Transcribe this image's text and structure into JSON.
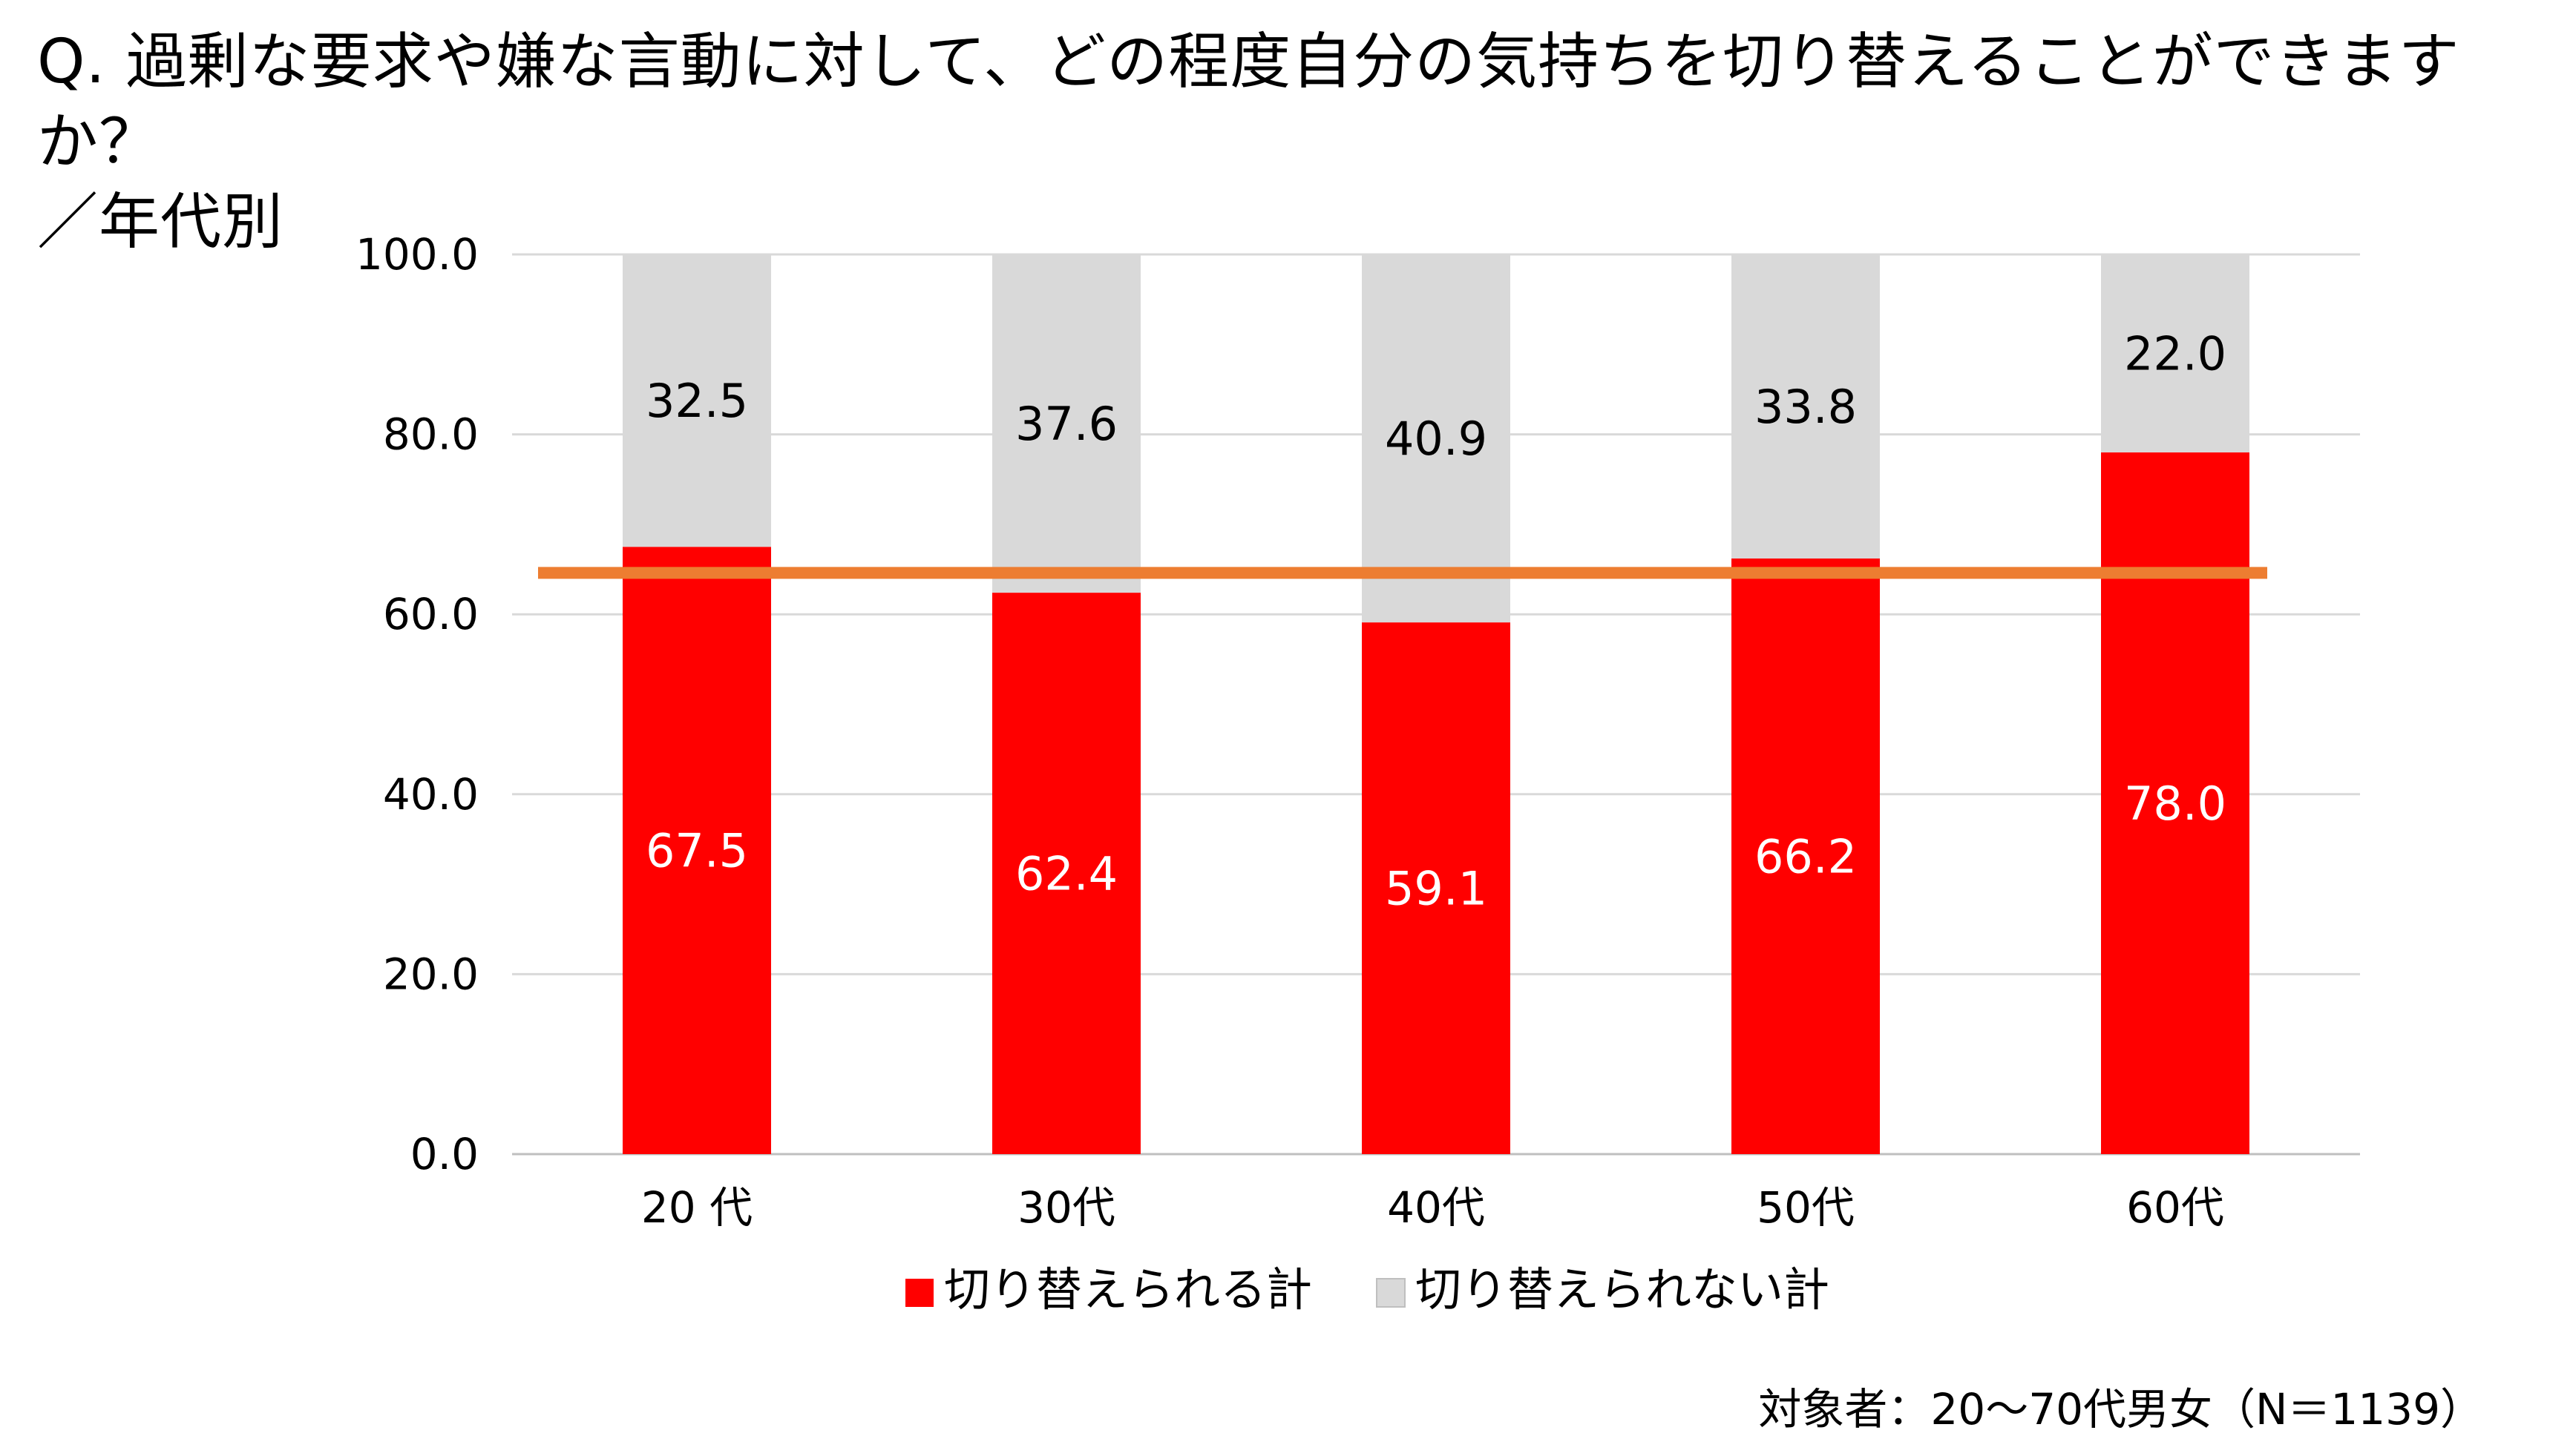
{
  "title": {
    "line1": "Q. 過剰な要求や嫌な言動に対して、どの程度自分の気持ちを切り替えることができますか？",
    "line2": "／年代別"
  },
  "footnote": "対象者：20～70代男女（N＝1139）",
  "chart_data": {
    "type": "bar",
    "stacked": true,
    "categories": [
      "20 代",
      "30代",
      "40代",
      "50代",
      "60代"
    ],
    "series": [
      {
        "name": "切り替えられる計",
        "values": [
          67.5,
          62.4,
          59.1,
          66.2,
          78.0
        ],
        "color": "#ff0000",
        "label_color": "#ffffff"
      },
      {
        "name": "切り替えられない計",
        "values": [
          32.5,
          37.6,
          40.9,
          33.8,
          22.0
        ],
        "color": "#d9d9d9",
        "label_color": "#000000"
      }
    ],
    "ylim": [
      0,
      100
    ],
    "yticks": [
      "0.0",
      "20.0",
      "40.0",
      "60.0",
      "80.0",
      "100.0"
    ],
    "reference_line": {
      "value": 64.6,
      "color": "#ed7d31"
    },
    "grid": true,
    "legend_position": "bottom"
  }
}
